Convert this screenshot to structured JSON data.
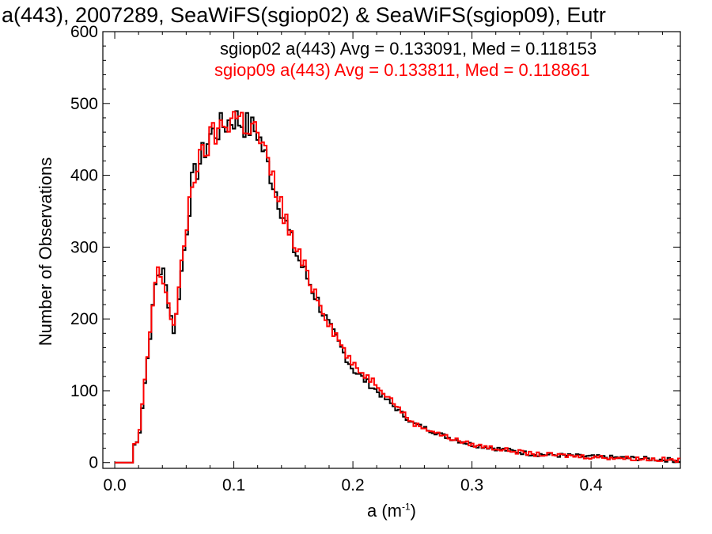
{
  "colors": {
    "sgiop02": "#000000",
    "sgiop09": "#ff0000",
    "axes": "#000000"
  },
  "chart_data": {
    "type": "histogram",
    "title": "a(443), 2007289, SeaWiFS(sgiop02) & SeaWiFS(sgiop09), Eutr",
    "xlabel_main": "a (m",
    "xlabel_exp": "-1",
    "xlabel_close": ")",
    "ylabel": "Number of Observations",
    "xlim": [
      -0.01,
      0.475
    ],
    "ylim": [
      -8,
      600
    ],
    "xticks": [
      0.0,
      0.1,
      0.2,
      0.3,
      0.4
    ],
    "xtick_labels": [
      "0.0",
      "0.1",
      "0.2",
      "0.3",
      "0.4"
    ],
    "yticks": [
      0,
      100,
      200,
      300,
      400,
      500,
      600
    ],
    "ytick_labels": [
      "0",
      "100",
      "200",
      "300",
      "400",
      "500",
      "600"
    ],
    "annotations": [
      {
        "series": "sgiop02",
        "text": "sgiop02 a(443) Avg = 0.133091, Med = 0.118153"
      },
      {
        "series": "sgiop09",
        "text": "sgiop09 a(443) Avg = 0.133811, Med = 0.118861"
      }
    ],
    "x": [
      0.0,
      0.02,
      0.035,
      0.04,
      0.05,
      0.065,
      0.08,
      0.1,
      0.12,
      0.15,
      0.18,
      0.2,
      0.22,
      0.25,
      0.28,
      0.3,
      0.35,
      0.4,
      0.45,
      0.475
    ],
    "series": [
      {
        "name": "sgiop02",
        "values": [
          0,
          30,
          260,
          270,
          180,
          390,
          455,
          480,
          460,
          300,
          190,
          130,
          100,
          55,
          35,
          25,
          12,
          8,
          5,
          3
        ]
      },
      {
        "name": "sgiop09",
        "values": [
          0,
          30,
          265,
          260,
          185,
          395,
          450,
          485,
          460,
          305,
          195,
          135,
          110,
          55,
          35,
          25,
          12,
          8,
          5,
          3
        ]
      }
    ]
  }
}
